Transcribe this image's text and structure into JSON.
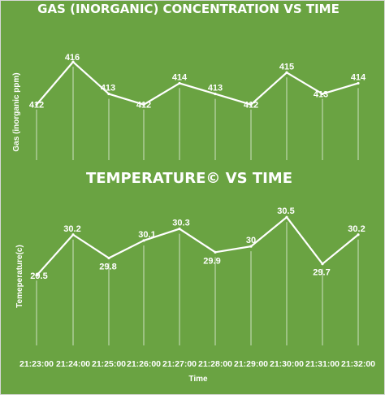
{
  "chart_data": [
    {
      "type": "line",
      "title": "GAS (INORGANIC) CONCENTRATION VS TIME",
      "ylabel": "Gas (inorganic ppm)",
      "xlabel": "",
      "values": [
        412,
        416,
        413,
        412,
        414,
        413,
        412,
        415,
        413,
        414
      ],
      "ylim": [
        410,
        417
      ],
      "grid": "drop-lines",
      "color": "#ffffff"
    },
    {
      "type": "line",
      "title": "TEMPERATURE© VS TIME",
      "ylabel": "Temeperature(c)",
      "xlabel": "Time",
      "categories": [
        "21:23:00",
        "21:24:00",
        "21:25:00",
        "21:26:00",
        "21:27:00",
        "21:28:00",
        "21:29:00",
        "21:30:00",
        "21:31:00",
        "21:32:00"
      ],
      "values": [
        29.5,
        30.2,
        29.8,
        30.1,
        30.3,
        29.9,
        30.0,
        30.5,
        29.7,
        30.2
      ],
      "ylim": [
        29.0,
        30.6
      ],
      "grid": "drop-lines",
      "color": "#ffffff"
    }
  ],
  "colors": {
    "background": "#6aa342",
    "foreground": "#ffffff"
  }
}
